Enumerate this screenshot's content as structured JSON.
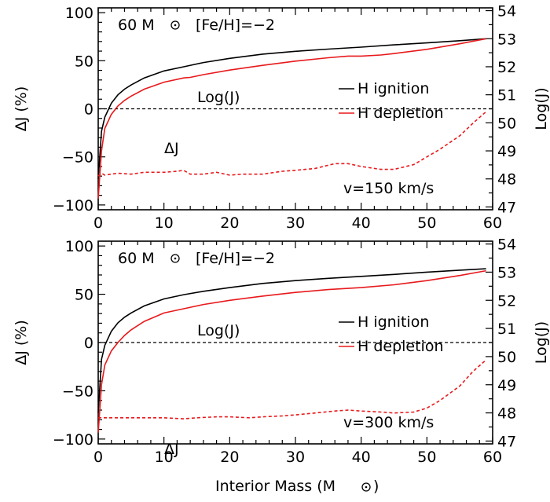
{
  "colors": {
    "ignition": "#000000",
    "depletion": "#e8191c",
    "zero": "#000000",
    "background": "#ffffff"
  },
  "chart_data": [
    {
      "type": "line",
      "panel": "top",
      "xlim": [
        0,
        60
      ],
      "ylim_left": [
        -105,
        105
      ],
      "ylim_right": [
        46.9,
        54.1
      ],
      "xticks": [
        "0",
        "10",
        "20",
        "30",
        "40",
        "50",
        "60"
      ],
      "yticks_left": [
        "100",
        "50",
        "0",
        "-50",
        "-100"
      ],
      "yticks_right": [
        "54",
        "53",
        "52",
        "51",
        "50",
        "49",
        "48",
        "47"
      ],
      "ylabel_left": "ΔJ (%)",
      "ylabel_right": "Log(J)",
      "annotations": {
        "mass_label": "60 M",
        "metallicity": "[Fe/H]=-2",
        "logj_label": "Log(J)",
        "dj_label": "ΔJ",
        "velocity": "v=150 km/s",
        "legend_ignition": "H ignition",
        "legend_depletion": "H depletion"
      },
      "series": [
        {
          "name": "H ignition",
          "axis": "right",
          "x": [
            0,
            0.5,
            1,
            2,
            3,
            4,
            5,
            7,
            10,
            13,
            16,
            20,
            25,
            30,
            35,
            40,
            45,
            50,
            55,
            59
          ],
          "y": [
            48.0,
            49.7,
            50.2,
            50.7,
            51.0,
            51.2,
            51.35,
            51.6,
            51.85,
            52.0,
            52.15,
            52.3,
            52.45,
            52.55,
            52.63,
            52.7,
            52.78,
            52.85,
            52.93,
            53.0
          ]
        },
        {
          "name": "H depletion",
          "axis": "right",
          "x": [
            0,
            0.5,
            1,
            2,
            3,
            4,
            5,
            7,
            10,
            13,
            14,
            16,
            20,
            25,
            30,
            35,
            38,
            40,
            43,
            45,
            50,
            55,
            59
          ],
          "y": [
            47.3,
            49.0,
            49.8,
            50.3,
            50.6,
            50.8,
            50.95,
            51.2,
            51.45,
            51.6,
            51.62,
            51.72,
            51.88,
            52.05,
            52.2,
            52.32,
            52.38,
            52.38,
            52.42,
            52.47,
            52.62,
            52.82,
            53.0
          ]
        },
        {
          "name": "ΔJ",
          "axis": "left",
          "style": "dashed",
          "x": [
            0,
            0.5,
            1,
            2,
            3,
            5,
            7,
            10,
            12,
            13,
            14,
            16,
            18,
            20,
            22,
            25,
            28,
            30,
            33,
            36,
            38,
            40,
            43,
            45,
            48,
            50,
            52,
            55,
            57,
            59
          ],
          "y": [
            -70,
            -67,
            -69,
            -68,
            -67,
            -68,
            -66,
            -66,
            -65,
            -64,
            -68,
            -68,
            -66,
            -69,
            -68,
            -68,
            -65,
            -64,
            -62,
            -57,
            -57,
            -60,
            -63,
            -63,
            -58,
            -50,
            -42,
            -28,
            -15,
            -3
          ]
        }
      ]
    },
    {
      "type": "line",
      "panel": "bottom",
      "xlim": [
        0,
        60
      ],
      "ylim_left": [
        -105,
        105
      ],
      "ylim_right": [
        46.9,
        54.1
      ],
      "xticks": [
        "0",
        "10",
        "20",
        "30",
        "40",
        "50",
        "60"
      ],
      "yticks_left": [
        "100",
        "50",
        "0",
        "-50",
        "-100"
      ],
      "yticks_right": [
        "54",
        "53",
        "52",
        "51",
        "50",
        "49",
        "48",
        "47"
      ],
      "xlabel": "Interior Mass (M",
      "ylabel_left": "ΔJ (%)",
      "ylabel_right": "Log(J)",
      "annotations": {
        "mass_label": "60 M",
        "metallicity": "[Fe/H]=-2",
        "logj_label": "Log(J)",
        "dj_label": "ΔJ",
        "velocity": "v=300 km/s",
        "legend_ignition": "H ignition",
        "legend_depletion": "H depletion"
      },
      "series": [
        {
          "name": "H ignition",
          "axis": "right",
          "x": [
            0,
            0.5,
            1,
            2,
            3,
            4,
            5,
            7,
            10,
            13,
            16,
            20,
            25,
            30,
            35,
            40,
            45,
            50,
            55,
            59
          ],
          "y": [
            48.0,
            49.9,
            50.4,
            50.9,
            51.2,
            51.4,
            51.55,
            51.8,
            52.05,
            52.2,
            52.32,
            52.45,
            52.6,
            52.7,
            52.78,
            52.85,
            52.92,
            53.0,
            53.07,
            53.12
          ]
        },
        {
          "name": "H depletion",
          "axis": "right",
          "x": [
            0,
            0.5,
            1,
            2,
            3,
            4,
            5,
            7,
            10,
            13,
            16,
            20,
            25,
            30,
            35,
            40,
            45,
            50,
            55,
            59
          ],
          "y": [
            47.3,
            49.0,
            49.7,
            50.2,
            50.5,
            50.75,
            50.95,
            51.25,
            51.55,
            51.7,
            51.85,
            52.0,
            52.15,
            52.28,
            52.38,
            52.45,
            52.55,
            52.7,
            52.88,
            53.05
          ]
        },
        {
          "name": "ΔJ",
          "axis": "left",
          "style": "dashed",
          "x": [
            0,
            1,
            3,
            5,
            8,
            10,
            13,
            15,
            18,
            20,
            23,
            25,
            28,
            30,
            33,
            36,
            38,
            40,
            43,
            45,
            48,
            50,
            52,
            55,
            57,
            59
          ],
          "y": [
            -78,
            -78,
            -78,
            -78,
            -78,
            -78,
            -79,
            -78,
            -77,
            -77,
            -78,
            -77,
            -76,
            -75,
            -73,
            -71,
            -70,
            -71,
            -72,
            -73,
            -72,
            -68,
            -60,
            -45,
            -30,
            -18
          ]
        }
      ]
    }
  ]
}
